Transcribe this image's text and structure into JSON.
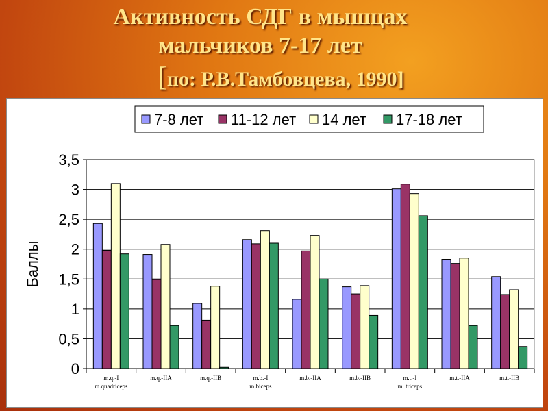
{
  "slide": {
    "title_line1": "Активность СДГ в мышцах",
    "title_line2": "мальчиков 7-17 лет",
    "citation_open": "[",
    "citation_text": "по: Р.В.Тамбовцева, 1990]"
  },
  "colors": {
    "series": [
      "#9999ff",
      "#993366",
      "#ffffcc",
      "#339966"
    ]
  },
  "chart_data": {
    "type": "bar",
    "ylabel": "Баллы",
    "ylim": [
      0,
      3.5
    ],
    "yticks": [
      "0",
      "0,5",
      "1",
      "1,5",
      "2",
      "2,5",
      "3",
      "3,5"
    ],
    "grid": true,
    "legend": "top-right",
    "categories": [
      [
        "m.q.-I",
        "m.quadriceps"
      ],
      [
        "m.q.-IIA"
      ],
      [
        "m.q.-IIB"
      ],
      [
        "m.b.-I",
        "m.biceps"
      ],
      [
        "m.b.-IIA"
      ],
      [
        "m.b.-IIB"
      ],
      [
        "m.t.-I",
        "m. triceps"
      ],
      [
        "m.t.-IIA"
      ],
      [
        "m.t.-IIB"
      ]
    ],
    "series": [
      {
        "name": "7-8 лет",
        "values": [
          2.43,
          1.91,
          1.09,
          2.16,
          1.16,
          1.37,
          3.01,
          1.83,
          1.54
        ]
      },
      {
        "name": "11-12 лет",
        "values": [
          1.98,
          1.49,
          0.81,
          2.09,
          1.97,
          1.25,
          3.09,
          1.76,
          1.24
        ]
      },
      {
        "name": "14 лет",
        "values": [
          3.1,
          2.08,
          1.38,
          2.31,
          2.23,
          1.39,
          2.93,
          1.85,
          1.32
        ]
      },
      {
        "name": "17-18 лет",
        "values": [
          1.92,
          0.72,
          0.02,
          2.1,
          1.5,
          0.89,
          2.56,
          0.72,
          0.37
        ]
      }
    ]
  }
}
